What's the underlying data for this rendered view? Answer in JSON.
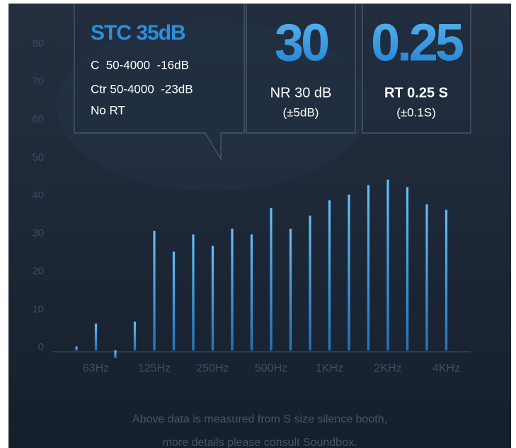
{
  "info_boxes": [
    {
      "title": "STC 35dB",
      "lines": [
        "C  50-4000  -16dB",
        "Ctr 50-4000  -23dB",
        "No RT"
      ]
    },
    {
      "big": "30",
      "label": "NR 30 dB",
      "sub": "(±5dB)"
    },
    {
      "big": "0.25",
      "label": "RT 0.25 S",
      "sub": "(±0.1S)"
    }
  ],
  "chart_data": {
    "type": "bar",
    "categories": [
      null,
      "63Hz",
      null,
      null,
      "125Hz",
      null,
      null,
      "250Hz",
      null,
      null,
      "500Hz",
      null,
      null,
      "1KHz",
      null,
      null,
      "2KHz",
      null,
      null,
      "4KHz"
    ],
    "values": [
      1,
      7,
      -2,
      7.5,
      31.5,
      26,
      30.5,
      27.5,
      32,
      30.5,
      37.5,
      32,
      35.5,
      39.5,
      41,
      43.5,
      45,
      43,
      38.5,
      37
    ],
    "color": "#3d9be0",
    "ylim": [
      0,
      80
    ],
    "yticks": [
      0,
      10,
      20,
      30,
      40,
      50,
      60,
      70,
      80
    ],
    "grid": false
  },
  "footer": [
    "Above data is measured from S size silence booth,",
    "more details please consult Soundbox."
  ]
}
